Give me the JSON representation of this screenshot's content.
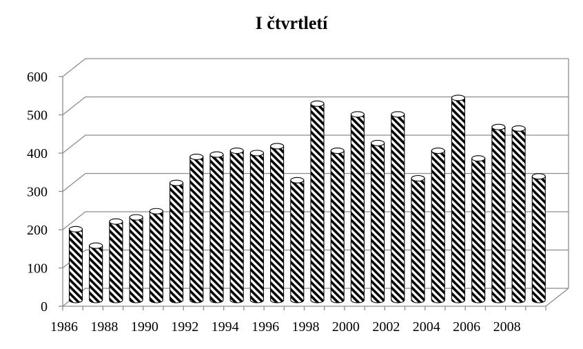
{
  "chart_data": {
    "type": "bar",
    "title": "I čtvrtletí",
    "xlabel": "",
    "ylabel": "",
    "categories": [
      "1986",
      "1987",
      "1988",
      "1989",
      "1990",
      "1991",
      "1992",
      "1993",
      "1994",
      "1995",
      "1996",
      "1997",
      "1998",
      "1999",
      "2000",
      "2001",
      "2002",
      "2003",
      "2004",
      "2005",
      "2006",
      "2007",
      "2008",
      "2009"
    ],
    "values": [
      185,
      142,
      205,
      216,
      232,
      306,
      374,
      380,
      390,
      384,
      402,
      313,
      513,
      390,
      485,
      410,
      485,
      318,
      390,
      528,
      370,
      452,
      448,
      323
    ],
    "x_tick_labels": [
      "1986",
      "1988",
      "1990",
      "1992",
      "1994",
      "1996",
      "1998",
      "2000",
      "2002",
      "2004",
      "2006",
      "2008"
    ],
    "y_tick_labels": [
      "0",
      "100",
      "200",
      "300",
      "400",
      "500",
      "600"
    ],
    "ylim": [
      0,
      600
    ],
    "grid": true,
    "legend": "none",
    "style": "3d-cylinder-hatched",
    "colors": {
      "hatch": "#000000",
      "background": "#ffffff",
      "grid": "#8c8c8c"
    }
  }
}
